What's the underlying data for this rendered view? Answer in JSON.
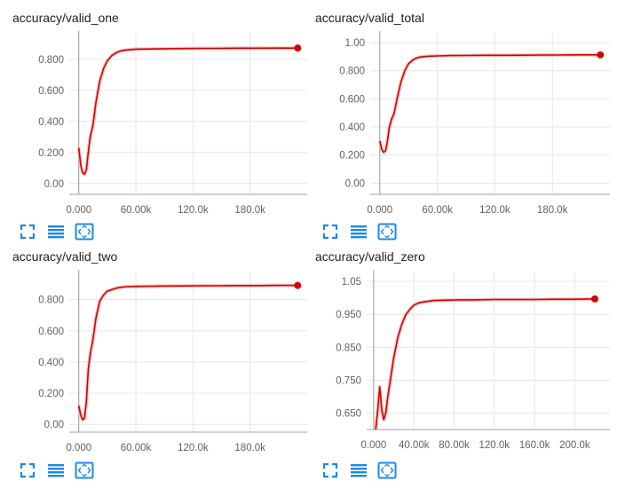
{
  "colors": {
    "line": "#d50000",
    "line_light": "#f4b7b7",
    "axis": "#9e9e9e",
    "grid": "#e6e6e6",
    "icon": "#1e88e5",
    "text": "#212121",
    "tick": "#616161"
  },
  "cards": [
    {
      "title": "accuracy/valid_one",
      "toolbar": [
        "fit-domain-icon",
        "toggle-log-scale-icon",
        "expand-chart-icon"
      ],
      "chart_data": {
        "type": "line",
        "x_ticks": [
          "0.000",
          "60.00k",
          "120.0k",
          "180.0k"
        ],
        "y_ticks": [
          "0.00",
          "0.200",
          "0.400",
          "0.600",
          "0.800"
        ],
        "xlim": [
          -10000,
          240000
        ],
        "ylim": [
          -0.07,
          0.97
        ],
        "x": [
          0,
          2000,
          4000,
          6000,
          8000,
          10000,
          12000,
          15000,
          18000,
          22000,
          26000,
          30000,
          35000,
          40000,
          45000,
          50000,
          60000,
          75000,
          90000,
          110000,
          130000,
          150000,
          170000,
          190000,
          210000,
          230000
        ],
        "y": [
          0.23,
          0.12,
          0.07,
          0.06,
          0.09,
          0.2,
          0.3,
          0.38,
          0.52,
          0.66,
          0.74,
          0.79,
          0.825,
          0.845,
          0.855,
          0.86,
          0.865,
          0.866,
          0.868,
          0.869,
          0.87,
          0.87,
          0.871,
          0.871,
          0.872,
          0.872
        ]
      }
    },
    {
      "title": "accuracy/valid_total",
      "toolbar": [
        "fit-domain-icon",
        "toggle-log-scale-icon",
        "expand-chart-icon"
      ],
      "chart_data": {
        "type": "line",
        "x_ticks": [
          "0.000",
          "60.00k",
          "120.0k",
          "180.0k"
        ],
        "y_ticks": [
          "0.00",
          "0.200",
          "0.400",
          "0.600",
          "0.800",
          "1.00"
        ],
        "xlim": [
          -10000,
          240000
        ],
        "ylim": [
          -0.08,
          1.07
        ],
        "x": [
          0,
          2000,
          4000,
          6000,
          8000,
          10000,
          12000,
          15000,
          18000,
          22000,
          26000,
          30000,
          35000,
          40000,
          45000,
          50000,
          60000,
          75000,
          90000,
          110000,
          130000,
          150000,
          170000,
          190000,
          210000,
          230000
        ],
        "y": [
          0.3,
          0.24,
          0.22,
          0.23,
          0.3,
          0.4,
          0.45,
          0.5,
          0.6,
          0.72,
          0.8,
          0.85,
          0.88,
          0.895,
          0.9,
          0.903,
          0.906,
          0.908,
          0.909,
          0.91,
          0.91,
          0.911,
          0.912,
          0.912,
          0.913,
          0.913
        ]
      }
    },
    {
      "title": "accuracy/valid_two",
      "toolbar": [
        "fit-domain-icon",
        "toggle-log-scale-icon",
        "expand-chart-icon"
      ],
      "chart_data": {
        "type": "line",
        "x_ticks": [
          "0.000",
          "60.00k",
          "120.0k",
          "180.0k"
        ],
        "y_ticks": [
          "0.00",
          "0.200",
          "0.400",
          "0.600",
          "0.800"
        ],
        "xlim": [
          -10000,
          240000
        ],
        "ylim": [
          -0.05,
          0.98
        ],
        "x": [
          0,
          2000,
          4000,
          6000,
          8000,
          10000,
          12000,
          15000,
          18000,
          22000,
          26000,
          30000,
          35000,
          40000,
          45000,
          50000,
          60000,
          75000,
          90000,
          110000,
          130000,
          150000,
          170000,
          190000,
          210000,
          230000
        ],
        "y": [
          0.12,
          0.06,
          0.03,
          0.04,
          0.15,
          0.35,
          0.45,
          0.55,
          0.68,
          0.79,
          0.83,
          0.855,
          0.865,
          0.875,
          0.88,
          0.883,
          0.885,
          0.886,
          0.887,
          0.888,
          0.889,
          0.889,
          0.89,
          0.89,
          0.891,
          0.891
        ]
      }
    },
    {
      "title": "accuracy/valid_zero",
      "toolbar": [
        "fit-domain-icon",
        "toggle-log-scale-icon",
        "expand-chart-icon"
      ],
      "chart_data": {
        "type": "line",
        "x_ticks": [
          "0.000",
          "40.00k",
          "80.00k",
          "120.0k",
          "160.0k",
          "200.0k"
        ],
        "y_ticks": [
          "0.650",
          "0.750",
          "0.850",
          "0.950",
          "1.05"
        ],
        "xlim": [
          -7000,
          235000
        ],
        "ylim": [
          0.6,
          1.08
        ],
        "x": [
          2000,
          4000,
          6000,
          8000,
          10000,
          12000,
          14000,
          17000,
          20000,
          24000,
          28000,
          32000,
          36000,
          40000,
          45000,
          50000,
          55000,
          60000,
          70000,
          85000,
          100000,
          120000,
          140000,
          160000,
          180000,
          200000,
          220000
        ],
        "y": [
          0.6,
          0.66,
          0.73,
          0.66,
          0.63,
          0.65,
          0.7,
          0.76,
          0.82,
          0.88,
          0.92,
          0.95,
          0.965,
          0.978,
          0.985,
          0.988,
          0.99,
          0.992,
          0.993,
          0.994,
          0.994,
          0.995,
          0.995,
          0.995,
          0.996,
          0.996,
          0.997
        ]
      }
    }
  ]
}
